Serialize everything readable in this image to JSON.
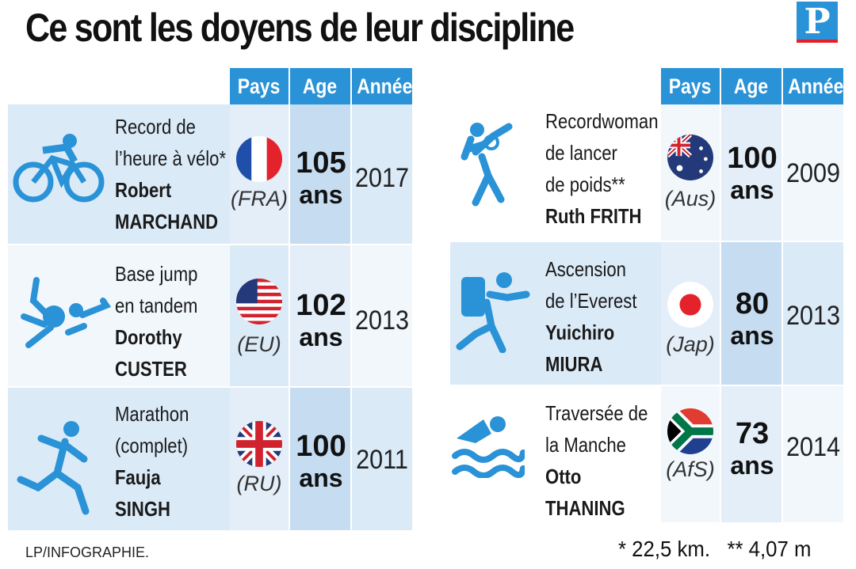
{
  "title": "Ce sont les doyens de leur discipline",
  "logo": "P",
  "headers": {
    "pays": "Pays",
    "age": "Age",
    "annee": "Année"
  },
  "left_rows": [
    {
      "line1": "Record de",
      "line2": "l’heure à vélo*",
      "name1": "Robert",
      "name2": "MARCHAND",
      "country": "(FRA)",
      "age_num": "105",
      "age_unit": "ans",
      "year": "2017"
    },
    {
      "line1": "Base jump",
      "line2": "en tandem",
      "name1": "Dorothy",
      "name2": "CUSTER",
      "country": "(EU)",
      "age_num": "102",
      "age_unit": "ans",
      "year": "2013"
    },
    {
      "line1": "Marathon",
      "line2": "(complet)",
      "name1": "Fauja",
      "name2": "SINGH",
      "country": "(RU)",
      "age_num": "100",
      "age_unit": "ans",
      "year": "2011"
    }
  ],
  "right_rows": [
    {
      "line1": "Recordwoman",
      "line2": "de lancer",
      "line3": "de poids**",
      "name1": "Ruth FRITH",
      "country": "(Aus)",
      "age_num": "100",
      "age_unit": "ans",
      "year": "2009"
    },
    {
      "line1": "Ascension",
      "line2": "de l’Everest",
      "name1": "Yuichiro",
      "name2": "MIURA",
      "country": "(Jap)",
      "age_num": "80",
      "age_unit": "ans",
      "year": "2013"
    },
    {
      "line1": "Traversée de",
      "line2": "la Manche",
      "name1": "Otto",
      "name2": "THANING",
      "country": "(AfS)",
      "age_num": "73",
      "age_unit": "ans",
      "year": "2014"
    }
  ],
  "footer": {
    "credit": "LP/INFOGRAPHIE.",
    "notes": "* 22,5 km.   ** 4,07 m"
  },
  "colors": {
    "accent": "#2a92d6",
    "row_dark": "#dbeaf7",
    "row_light": "#f2f7fc"
  },
  "icons": [
    "cyclist-icon",
    "skydiver-icon",
    "runner-icon",
    "shot-put-icon",
    "climber-icon",
    "swimmer-icon"
  ]
}
